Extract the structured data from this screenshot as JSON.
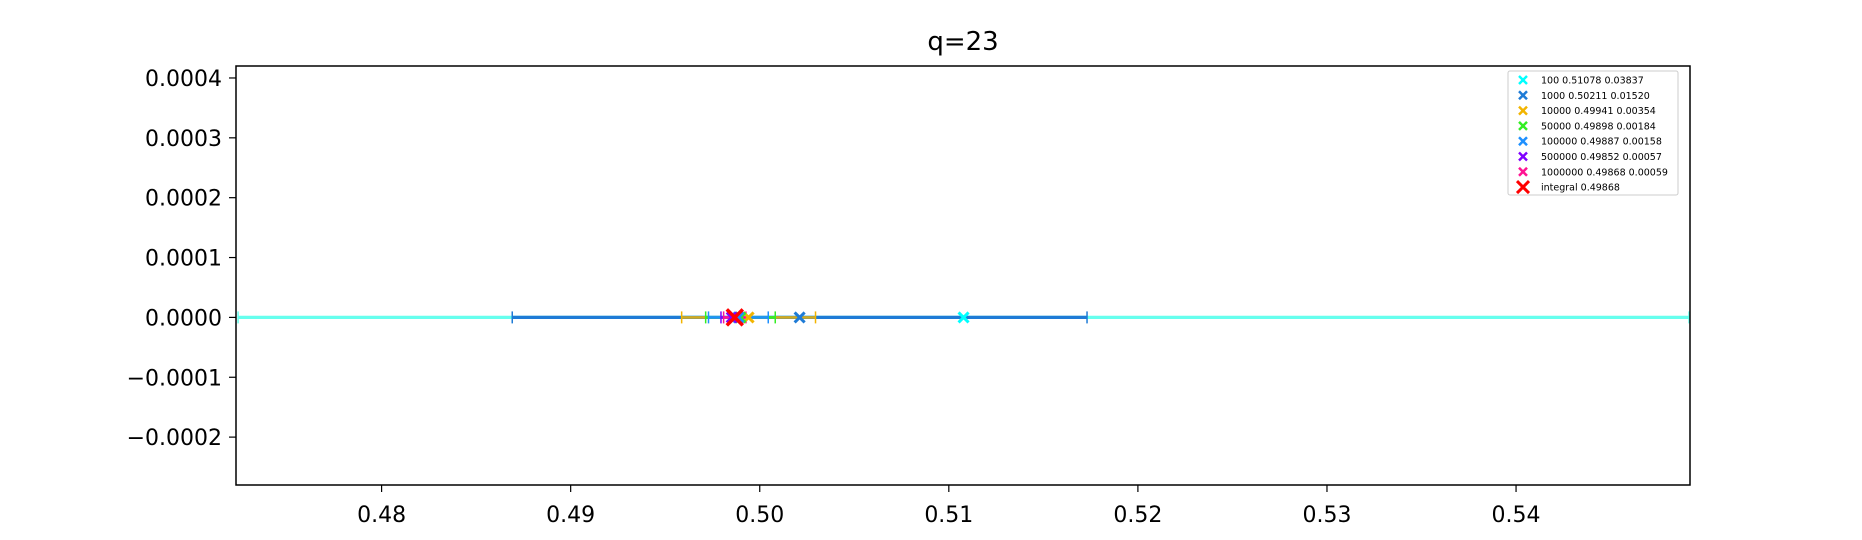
{
  "chart_data": {
    "type": "scatter",
    "title": "q=23",
    "xlabel": "",
    "ylabel": "",
    "xlim": [
      0.4723,
      0.5492
    ],
    "ylim": [
      -0.00028,
      0.00042
    ],
    "x_ticks": [
      0.48,
      0.49,
      0.5,
      0.51,
      0.52,
      0.53,
      0.54
    ],
    "x_tick_labels": [
      "0.48",
      "0.49",
      "0.50",
      "0.51",
      "0.52",
      "0.53",
      "0.54"
    ],
    "y_ticks": [
      -0.0002,
      -0.0001,
      0.0,
      0.0001,
      0.0002,
      0.0003,
      0.0004
    ],
    "y_tick_labels": [
      "−0.0002",
      "−0.0001",
      "0.0000",
      "0.0001",
      "0.0002",
      "0.0003",
      "0.0004"
    ],
    "grid": false,
    "legend_position": "top-right",
    "series": [
      {
        "name": "100 0.51078 0.03837",
        "x": 0.51078,
        "y": 0,
        "xerr": 0.03837,
        "color": "#00ffff",
        "marker": "x"
      },
      {
        "name": "1000 0.50211 0.01520",
        "x": 0.50211,
        "y": 0,
        "xerr": 0.0152,
        "color": "#1e7bd6",
        "marker": "x"
      },
      {
        "name": "10000 0.49941 0.00354",
        "x": 0.49941,
        "y": 0,
        "xerr": 0.00354,
        "color": "#f2b400",
        "marker": "x"
      },
      {
        "name": "50000 0.49898 0.00184",
        "x": 0.49898,
        "y": 0,
        "xerr": 0.00184,
        "color": "#33ee22",
        "marker": "x"
      },
      {
        "name": "100000 0.49887 0.00158",
        "x": 0.49887,
        "y": 0,
        "xerr": 0.00158,
        "color": "#1e90ff",
        "marker": "x"
      },
      {
        "name": "500000 0.49852 0.00057",
        "x": 0.49852,
        "y": 0,
        "xerr": 0.00057,
        "color": "#8000ff",
        "marker": "x"
      },
      {
        "name": "1000000 0.49868 0.00059",
        "x": 0.49868,
        "y": 0,
        "xerr": 0.00059,
        "color": "#ff1493",
        "marker": "x"
      },
      {
        "name": "integral 0.49868",
        "x": 0.49868,
        "y": 0,
        "xerr": null,
        "color": "#ff0000",
        "marker": "X"
      }
    ]
  }
}
